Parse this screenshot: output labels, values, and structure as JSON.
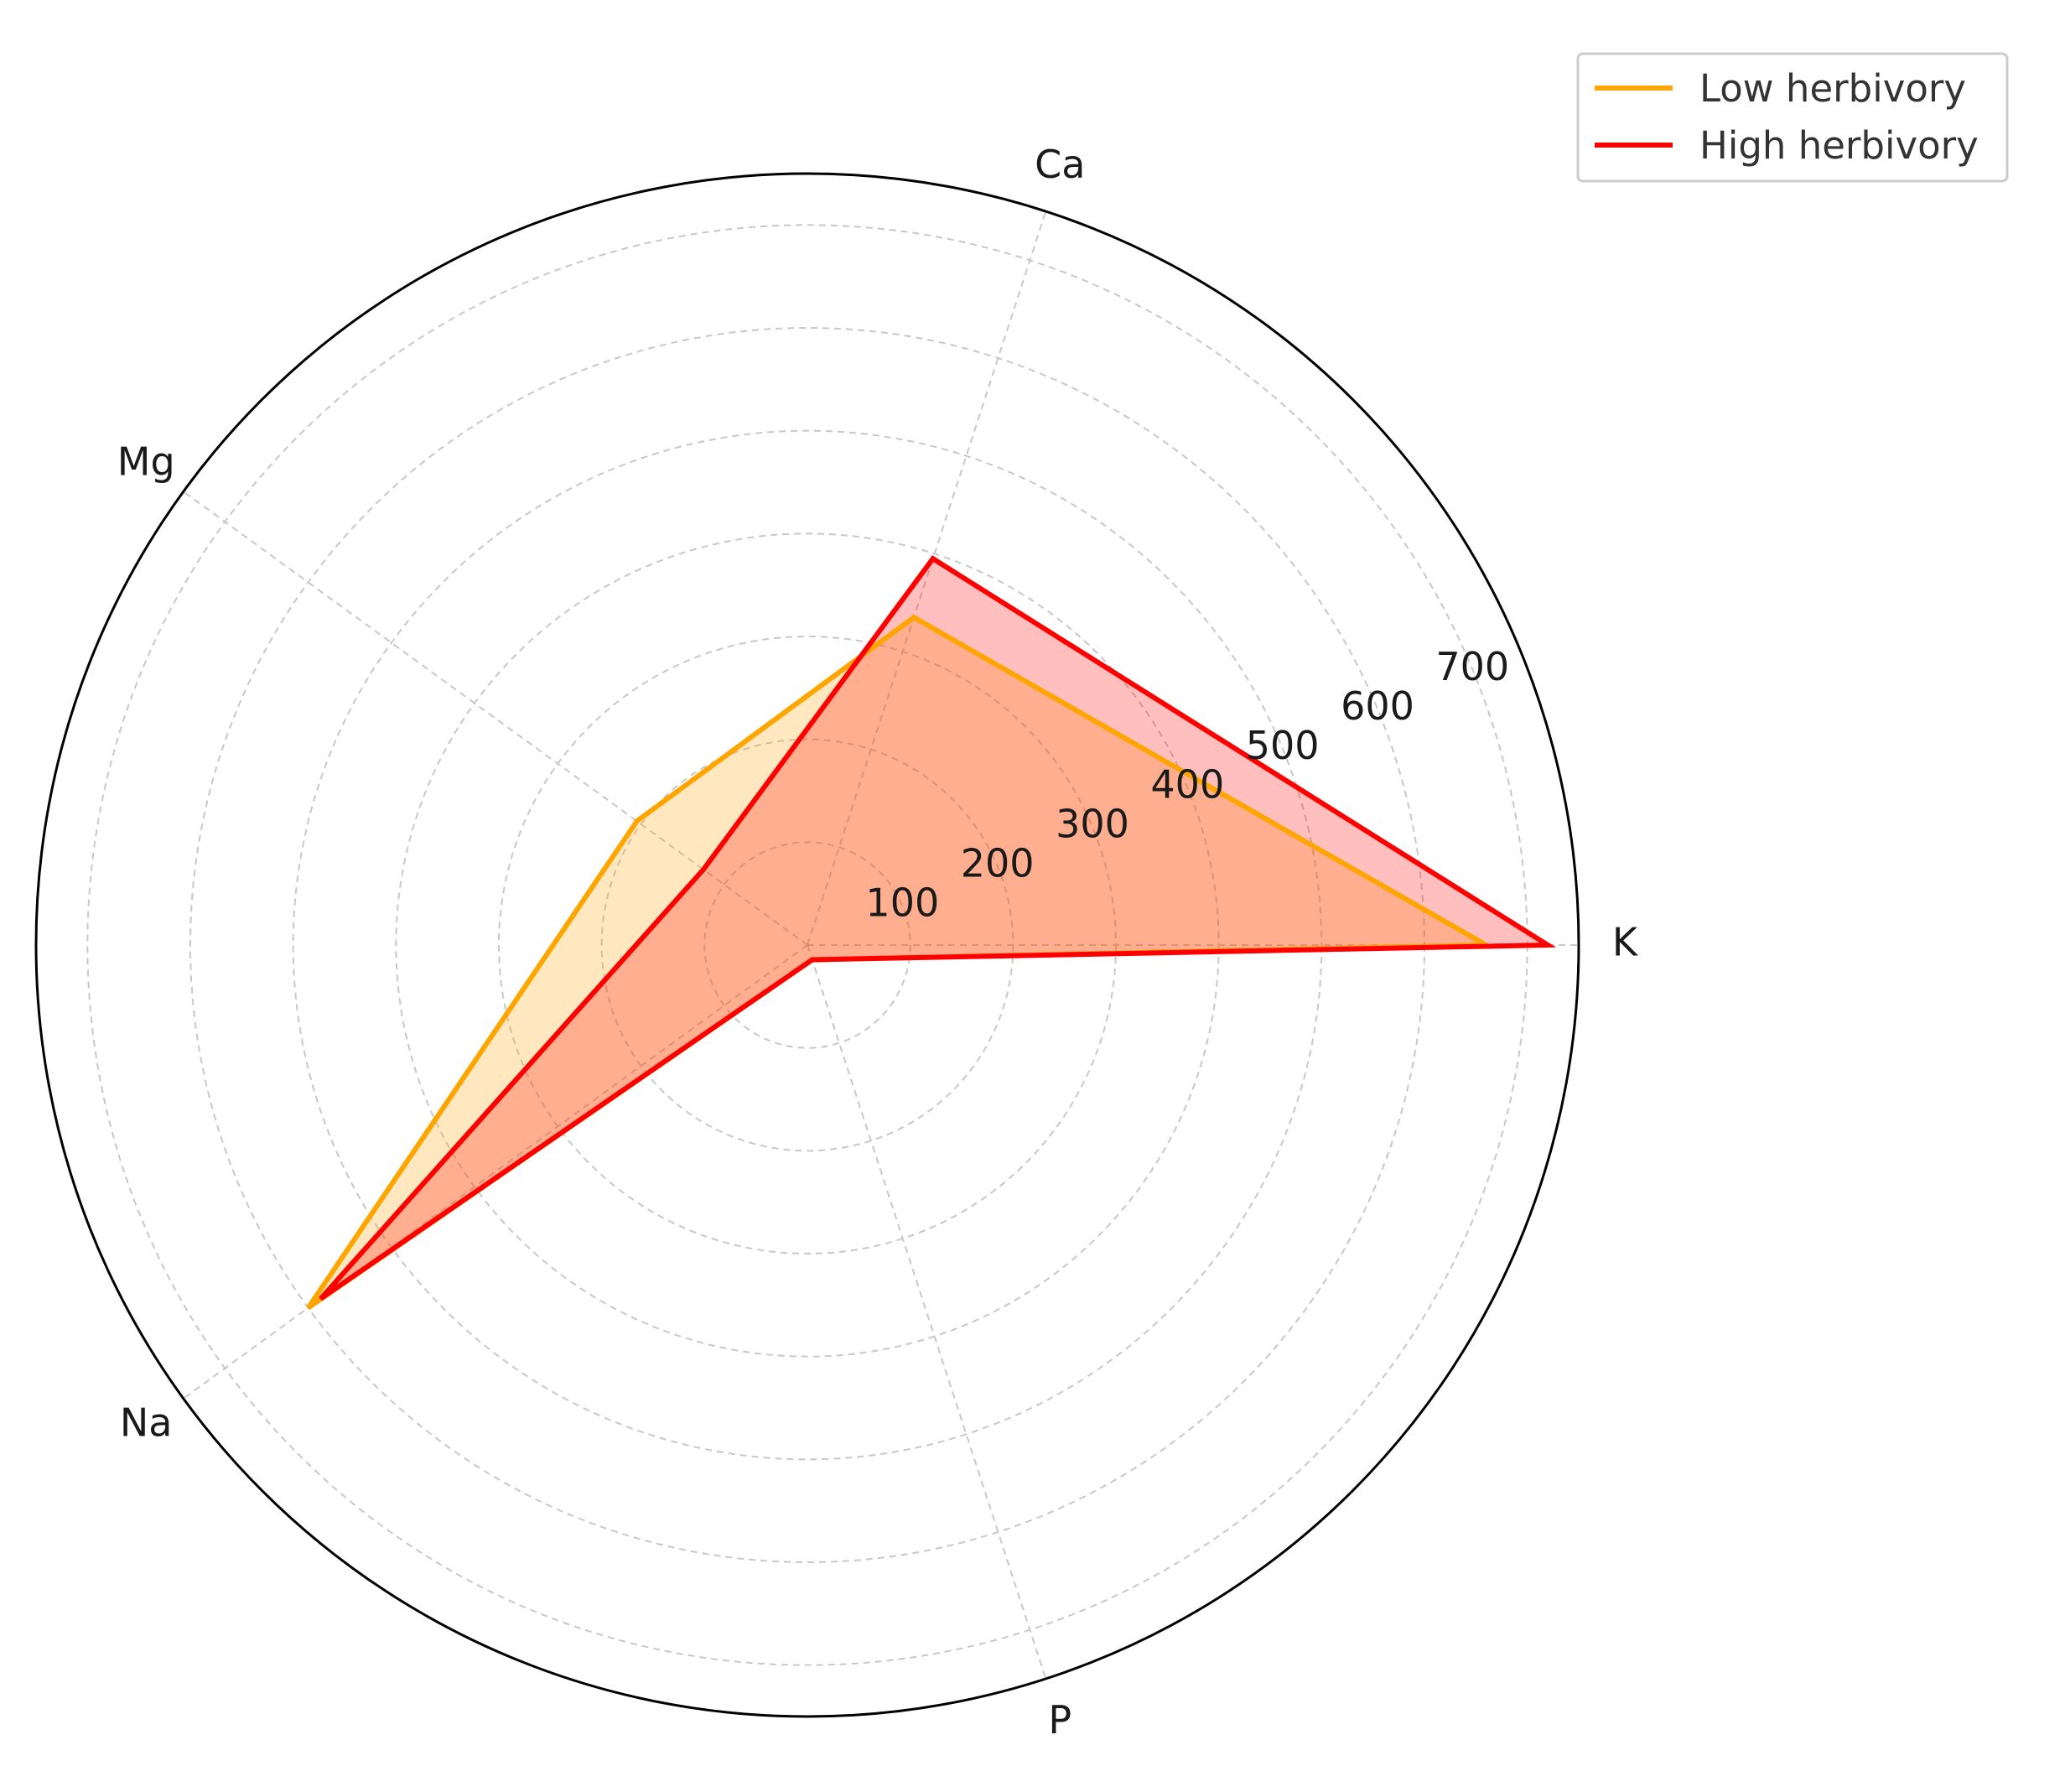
{
  "chart_data": {
    "type": "radar",
    "categories": [
      "K",
      "Ca",
      "Mg",
      "Na",
      "P"
    ],
    "radial_ticks": [
      "100",
      "200",
      "300",
      "400",
      "500",
      "600",
      "700"
    ],
    "rlim": [
      0,
      750
    ],
    "grid": true,
    "legend_placement": "top-right",
    "series": [
      {
        "name": "Low herbivory",
        "color": "#FFA500",
        "fill": "#FFA500",
        "values": [
          660,
          335,
          205,
          600,
          15
        ]
      },
      {
        "name": "High herbivory",
        "color": "#FF0000",
        "fill": "#FF0000",
        "values": [
          720,
          395,
          125,
          585,
          15
        ]
      }
    ]
  }
}
